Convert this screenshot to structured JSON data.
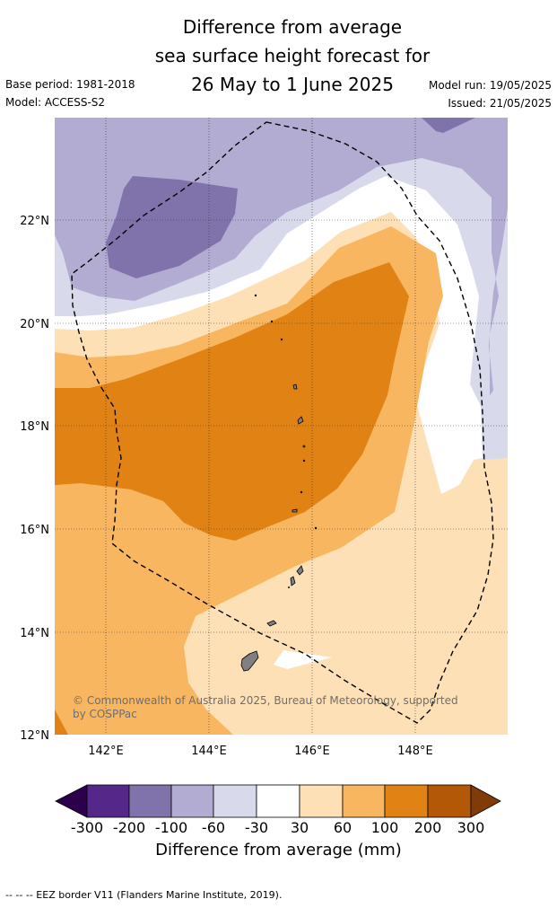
{
  "header": {
    "title_line1": "Difference from average",
    "title_line2": "sea surface height forecast for",
    "title_line3": "26 May to 1 June 2025",
    "base_period": "Base period: 1981-2018",
    "model": "Model: ACCESS-S2",
    "model_run": "Model run: 19/05/2025",
    "issued": "Issued: 21/05/2025"
  },
  "map": {
    "lat_ticks": [
      "22°N",
      "20°N",
      "18°N",
      "16°N",
      "14°N",
      "12°N"
    ],
    "lon_ticks": [
      "142°E",
      "144°E",
      "146°E",
      "148°E"
    ],
    "copyright_line1": "© Commonwealth of Australia 2025, Bureau of Meteorology, supported",
    "copyright_line2": "by COSPPac"
  },
  "colorbar": {
    "title": "Difference from average (mm)",
    "labels": [
      "-300",
      "-200",
      "-100",
      "-60",
      "-30",
      "30",
      "60",
      "100",
      "200",
      "300"
    ],
    "colors": [
      "#2d004b",
      "#542788",
      "#8073ac",
      "#b2abd2",
      "#d8daeb",
      "#ffffff",
      "#fee0b6",
      "#f9b661",
      "#e08214",
      "#b35806",
      "#7f3b08"
    ]
  },
  "footer": {
    "eez_legend": "--  --  -- EEZ border V11 (Flanders Marine Institute, 2019)."
  }
}
